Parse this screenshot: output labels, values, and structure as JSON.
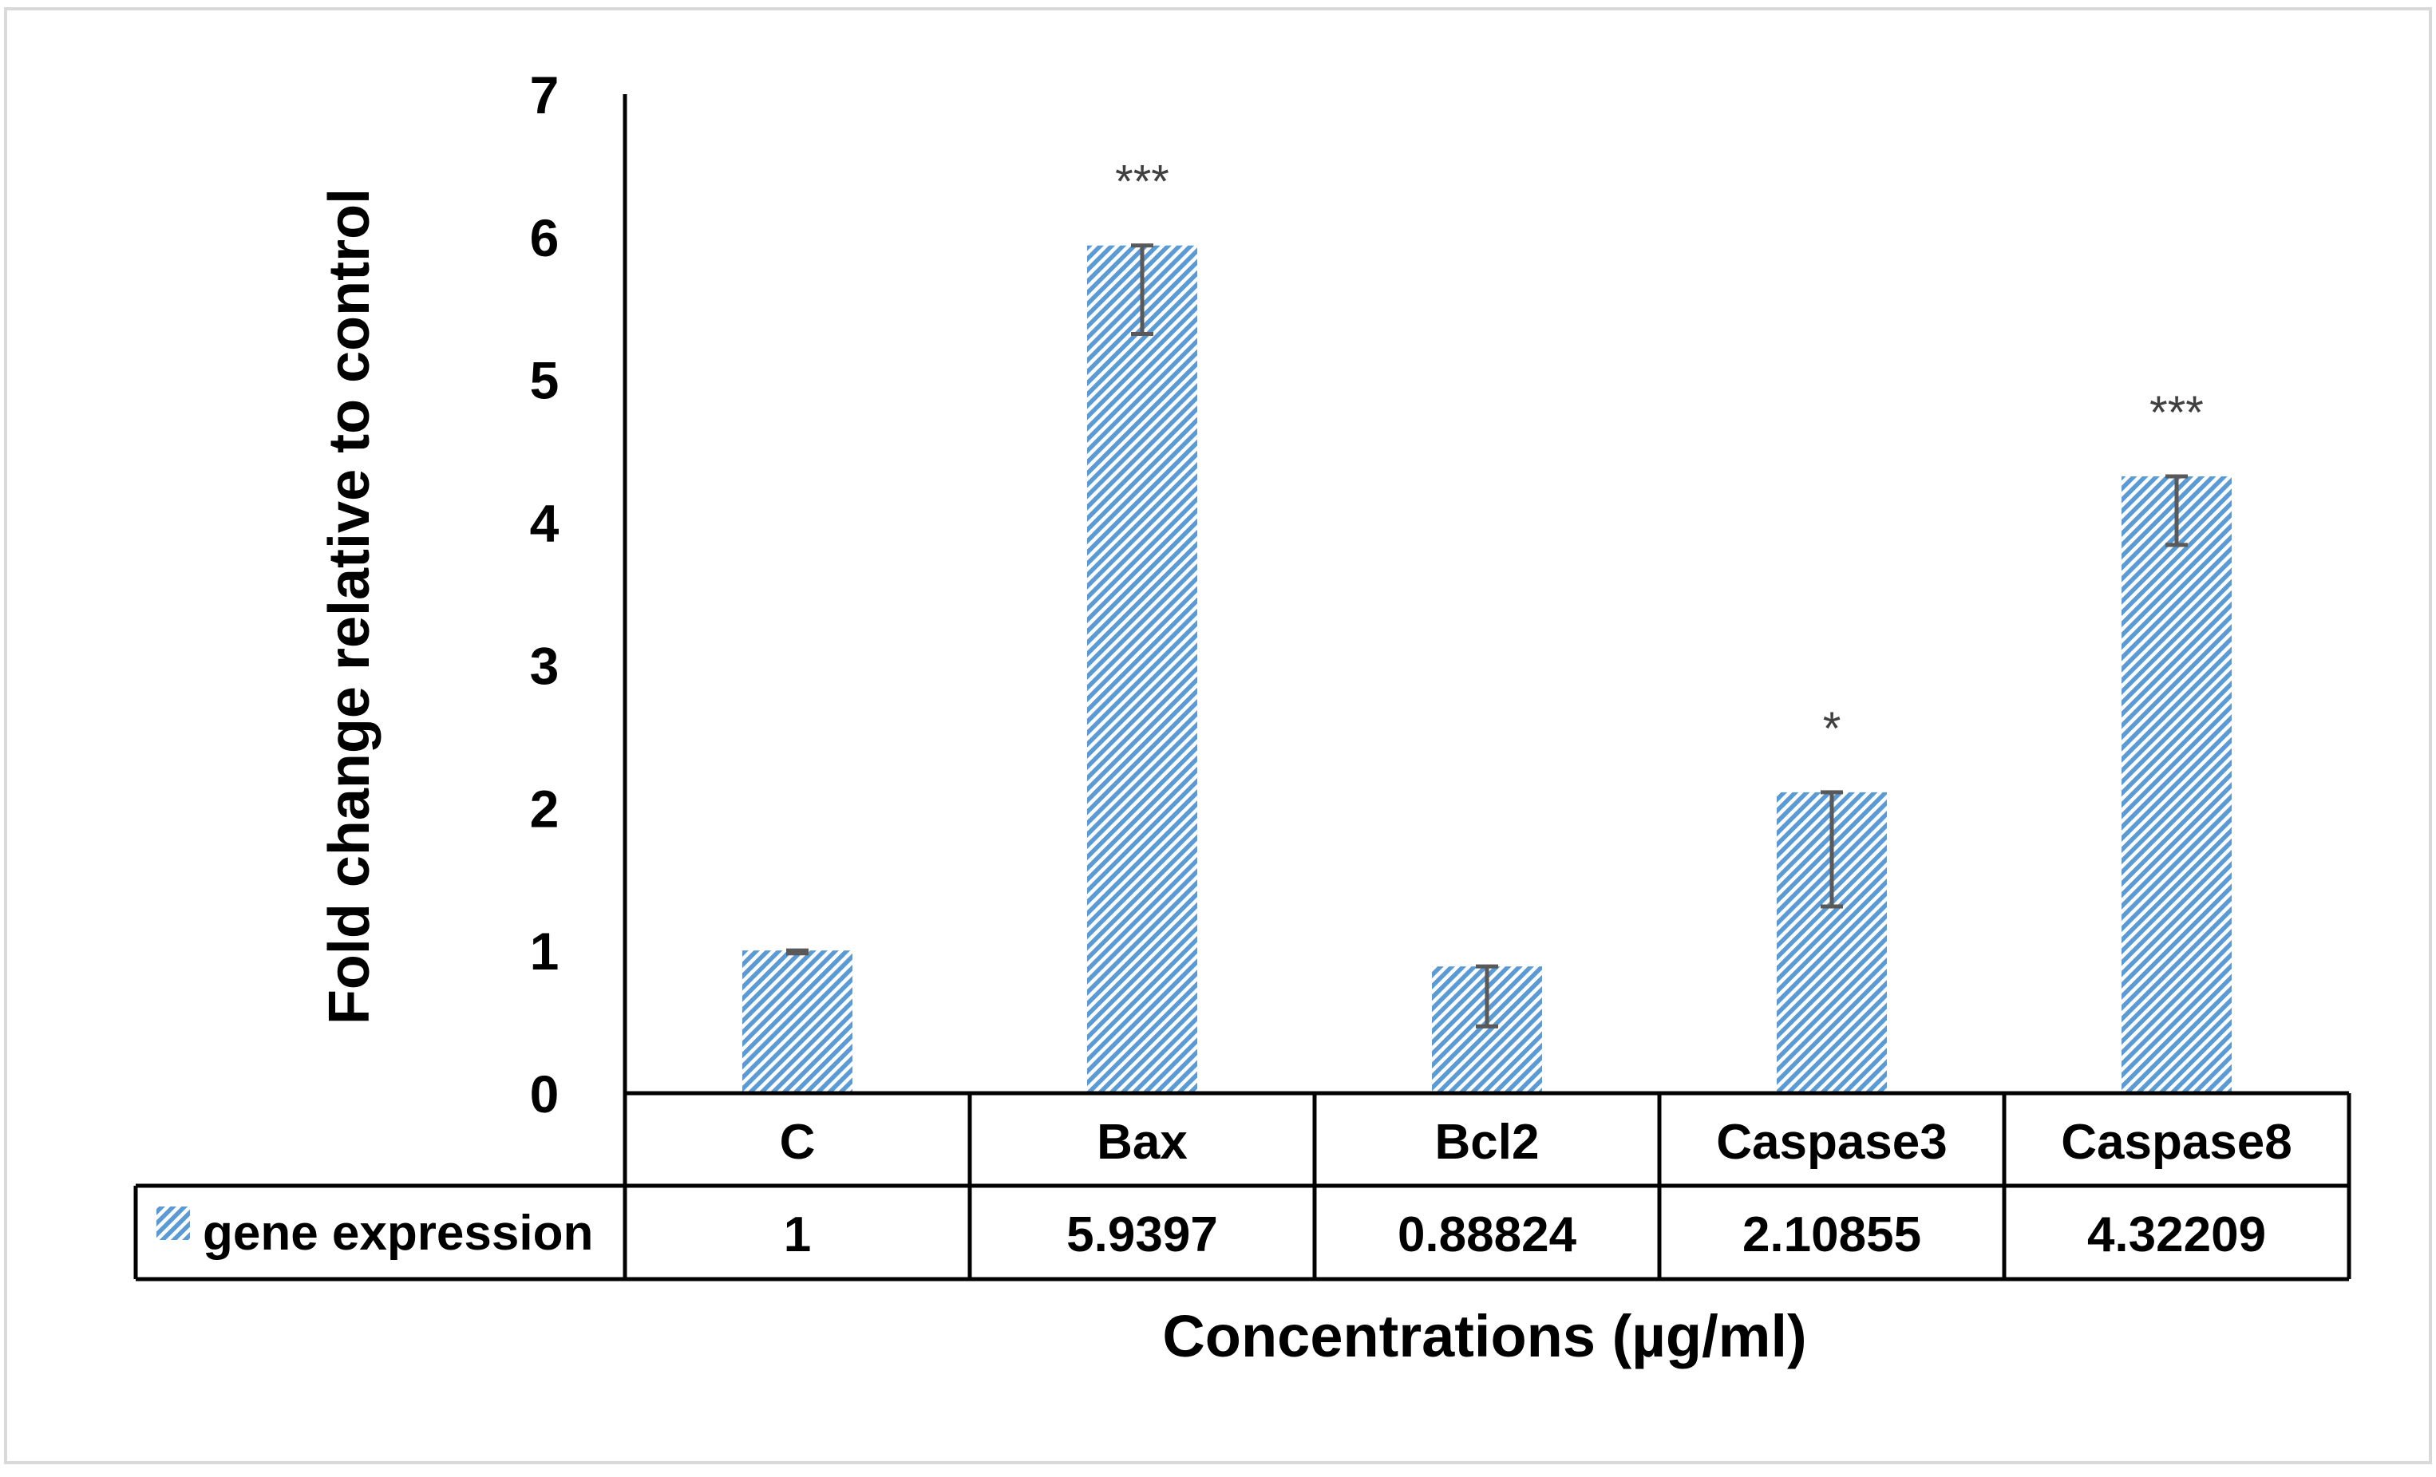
{
  "chart_data": {
    "type": "bar",
    "title": "",
    "xlabel": "Concentrations (µg/ml)",
    "ylabel": "Fold change relative to control",
    "ylim": [
      0,
      7
    ],
    "yticks": [
      0,
      1,
      2,
      3,
      4,
      5,
      6,
      7
    ],
    "grid": false,
    "categories": [
      "C",
      "Bax",
      "Bcl2",
      "Caspase3",
      "Caspase8"
    ],
    "series": [
      {
        "name": "gene expression",
        "values": [
          1,
          5.9397,
          0.88824,
          2.10855,
          4.32209
        ],
        "value_labels": [
          "1",
          "5.9397",
          "0.88824",
          "2.10855",
          "4.32209"
        ],
        "error_lower": [
          0.02,
          0.62,
          0.42,
          0.8,
          0.48
        ],
        "significance": [
          "",
          "***",
          "",
          "*",
          "***"
        ]
      }
    ],
    "legend": "data-table-left",
    "colors": {
      "bar_stripe": "#5b9bd5",
      "bar_background": "#ffffff",
      "axis": "#000000",
      "error_bar": "#595959",
      "frame": "#d9d9d9"
    }
  }
}
